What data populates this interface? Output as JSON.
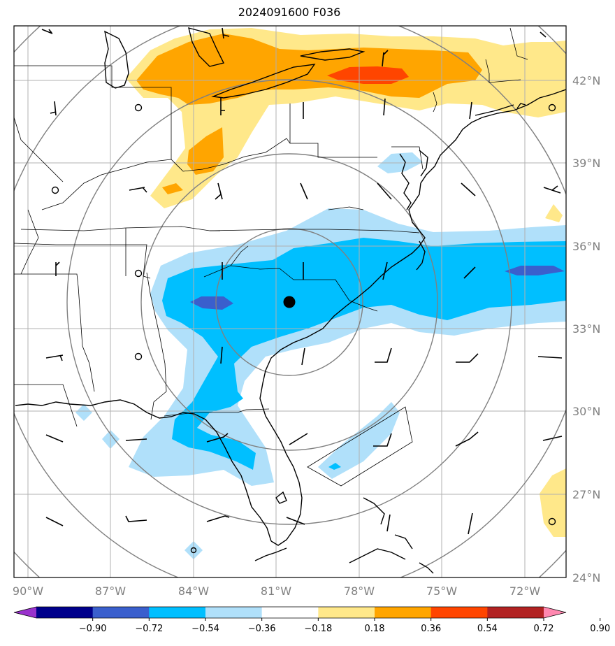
{
  "title": "2024091600 F036",
  "longitude_labels": [
    "90°W",
    "87°W",
    "84°W",
    "81°W",
    "78°W",
    "75°W",
    "72°W"
  ],
  "latitude_labels": [
    "42°N",
    "39°N",
    "36°N",
    "33°N",
    "30°N",
    "27°N",
    "24°N"
  ],
  "colorbar": {
    "tick_labels": [
      "−0.90",
      "−0.72",
      "−0.54",
      "−0.36",
      "−0.18",
      "0.18",
      "0.36",
      "0.54",
      "0.72",
      "0.90"
    ],
    "colors": [
      "#9932cc",
      "#00008b",
      "#3a5fcd",
      "#00bfff",
      "#b0e0fa",
      "#ffffff",
      "#ffe88a",
      "#ffa500",
      "#ff4500",
      "#b22222",
      "#ff88b0"
    ]
  },
  "center_marker": {
    "label": "center-point",
    "color": "#000000"
  },
  "colors": {
    "grid": "#b0b0b0",
    "range_rings": "#808080",
    "coast": "#000000",
    "light_blue": "#b0e0fa",
    "blue": "#00bfff",
    "medium_blue": "#3a5fcd",
    "yellow": "#ffe88a",
    "orange": "#ffa500",
    "red_orange": "#ff4500"
  }
}
